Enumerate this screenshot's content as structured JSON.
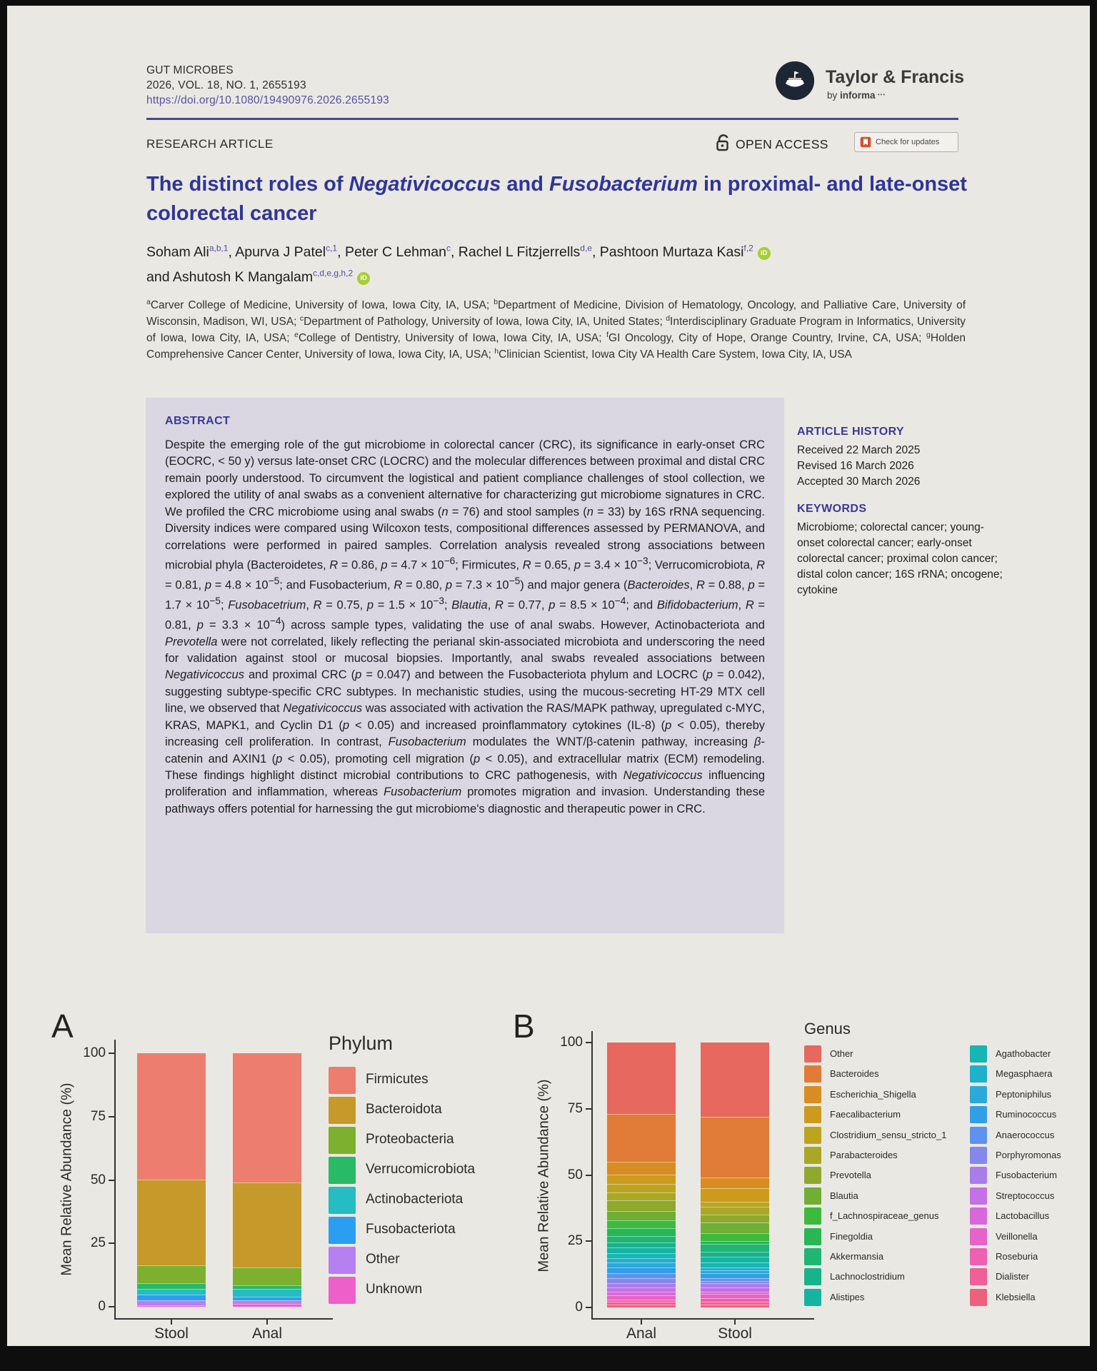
{
  "journal": {
    "name": "GUT MICROBES",
    "citation": "2026, VOL. 18, NO. 1, 2655193",
    "doi": "https://doi.org/10.1080/19490976.2026.2655193",
    "publisher": "Taylor & Francis",
    "publisher_tagline_html": "by <b>informa</b><span class=\"dots\"> •••</span>",
    "article_type": "RESEARCH ARTICLE",
    "open_access": "OPEN ACCESS",
    "check_updates": "Check for updates"
  },
  "article": {
    "title_html": "The distinct roles of <i>Negativicoccus</i> and <i>Fusobacterium</i> in proximal- and late-onset colorectal cancer",
    "authors_html": "Soham Ali<sup>a,b,1</sup>, Apurva J Patel<sup>c,1</sup>, Peter C Lehman<sup>c</sup>, Rachel L Fitzjerrells<sup>d,e</sup>, Pashtoon Murtaza Kasi<sup>f,2</sup><span class=\"orcid\" data-name=\"orcid-icon\" data-interactable=\"true\">iD</span><br>and Ashutosh K Mangalam<sup>c,d,e,g,h,2</sup><span class=\"orcid\" data-name=\"orcid-icon\" data-interactable=\"true\">iD</span>",
    "affiliations_html": "<sup>a</sup>Carver College of Medicine, University of Iowa, Iowa City, IA, USA; <sup>b</sup>Department of Medicine, Division of Hematology, Oncology, and Palliative Care, University of Wisconsin, Madison, WI, USA; <sup>c</sup>Department of Pathology, University of Iowa, Iowa City, IA, United States; <sup>d</sup>Interdisciplinary Graduate Program in Informatics, University of Iowa, Iowa City, IA, USA; <sup>e</sup>College of Dentistry, University of Iowa, Iowa City, IA, USA; <sup>f</sup>GI Oncology, City of Hope, Orange Country, Irvine, CA, USA; <sup>g</sup>Holden Comprehensive Cancer Center, University of Iowa, Iowa City, IA, USA; <sup>h</sup>Clinician Scientist, Iowa City VA Health Care System, Iowa City, IA, USA"
  },
  "abstract": {
    "heading": "ABSTRACT",
    "body_html": "Despite the emerging role of the gut microbiome in colorectal cancer (CRC), its significance in early-onset CRC (EOCRC, &lt; 50 y) versus late-onset CRC (LOCRC) and the molecular differences between proximal and distal CRC remain poorly understood. To circumvent the logistical and patient compliance challenges of stool collection, we explored the utility of anal swabs as a convenient alternative for characterizing gut microbiome signatures in CRC. We profiled the CRC microbiome using anal swabs (<i>n</i> = 76) and stool samples (<i>n</i> = 33) by 16S rRNA sequencing. Diversity indices were compared using Wilcoxon tests, compositional differences assessed by PERMANOVA, and correlations were performed in paired samples. Correlation analysis revealed strong associations between microbial phyla (Bacteroidetes, <i>R</i> = 0.86, <i>p</i> = 4.7 × 10<sup>−6</sup>; Firmicutes, <i>R</i> = 0.65, <i>p</i> = 3.4 × 10<sup>−3</sup>; Verrucomicrobiota, <i>R</i> = 0.81, <i>p</i> = 4.8 × 10<sup>−5</sup>; and Fusobacterium, <i>R</i> = 0.80, <i>p</i> = 7.3 × 10<sup>−5</sup>) and major genera (<i>Bacteroides</i>, <i>R</i> = 0.88, <i>p</i> = 1.7 × 10<sup>−5</sup>; <i>Fusobacetrium</i>, <i>R</i> = 0.75, <i>p</i> = 1.5 × 10<sup>−3</sup>; <i>Blautia</i>, <i>R</i> = 0.77, <i>p</i> = 8.5 × 10<sup>−4</sup>; and <i>Bifidobacterium</i>, <i>R</i> = 0.81, <i>p</i> = 3.3 × 10<sup>−4</sup>) across sample types, validating the use of anal swabs. However, Actinobacteriota and <i>Prevotella</i> were not correlated, likely reflecting the perianal skin-associated microbiota and underscoring the need for validation against stool or mucosal biopsies. Importantly, anal swabs revealed associations between <i>Negativicoccus</i> and proximal CRC (<i>p</i> = 0.047) and between the Fusobacteriota phylum and LOCRC (<i>p</i> = 0.042), suggesting subtype-specific CRC subtypes. In mechanistic studies, using the mucous-secreting HT-29 MTX cell line, we observed that <i>Negativicoccus</i> was associated with activation the RAS/MAPK pathway, upregulated c-MYC, KRAS, MAPK1, and Cyclin D1 (<i>p</i> &lt; 0.05) and increased proinflammatory cytokines (IL-8) (<i>p</i> &lt; 0.05), thereby increasing cell proliferation. In contrast, <i>Fusobacterium</i> modulates the WNT/β-catenin pathway, increasing <i>β</i>-catenin and AXIN1 (<i>p</i> &lt; 0.05), promoting cell migration (<i>p</i> &lt; 0.05), and extracellular matrix (ECM) remodeling. These findings highlight distinct microbial contributions to CRC pathogenesis, with <i>Negativicoccus</i> influencing proliferation and inflammation, whereas <i>Fusobacterium</i> promotes migration and invasion. Understanding these pathways offers potential for harnessing the gut microbiome's diagnostic and therapeutic power in CRC."
  },
  "history": {
    "heading": "ARTICLE HISTORY",
    "received": "Received 22 March 2025",
    "revised": "Revised 16 March 2026",
    "accepted": "Accepted 30 March 2026"
  },
  "keywords": {
    "heading": "KEYWORDS",
    "text": "Microbiome; colorectal cancer; young-onset colorectal cancer; early-onset colorectal cancer; proximal colon cancer; distal colon cancer; 16S rRNA; oncogene; cytokine"
  },
  "chart_data": [
    {
      "type": "bar",
      "panel": "A",
      "stacked": true,
      "legend_title": "Phylum",
      "ylabel": "Mean Relative Abundance (%)",
      "ylim": [
        0,
        100
      ],
      "yticks": [
        0,
        25,
        50,
        75,
        100
      ],
      "categories": [
        "Stool",
        "Anal"
      ],
      "series": [
        {
          "name": "Firmicutes",
          "color": "#ed7d6e",
          "values": [
            49.8,
            51.0
          ]
        },
        {
          "name": "Bacteroidota",
          "color": "#c6992b",
          "values": [
            34.0,
            33.5
          ]
        },
        {
          "name": "Proteobacteria",
          "color": "#7db02e",
          "values": [
            7.0,
            7.0
          ]
        },
        {
          "name": "Verrucomicrobiota",
          "color": "#28ba66",
          "values": [
            2.2,
            1.5
          ]
        },
        {
          "name": "Actinobacteriota",
          "color": "#25bcc2",
          "values": [
            2.3,
            3.0
          ]
        },
        {
          "name": "Fusobacteriota",
          "color": "#2c9ef2",
          "values": [
            2.2,
            1.5
          ]
        },
        {
          "name": "Other",
          "color": "#b67ff2",
          "values": [
            2.0,
            1.5
          ]
        },
        {
          "name": "Unknown",
          "color": "#ed5fc9",
          "values": [
            0.5,
            1.0
          ]
        }
      ]
    },
    {
      "type": "bar",
      "panel": "B",
      "stacked": true,
      "legend_title": "Genus",
      "ylabel": "Mean Relative Abundance (%)",
      "ylim": [
        0,
        100
      ],
      "yticks": [
        0,
        25,
        50,
        75,
        100
      ],
      "categories": [
        "Anal",
        "Stool"
      ],
      "series": [
        {
          "name": "Other",
          "color": "#e7685e",
          "values": [
            27.0,
            28.0
          ]
        },
        {
          "name": "Bacteroides",
          "color": "#e07b38",
          "values": [
            18.0,
            23.0
          ]
        },
        {
          "name": "Escherichia_Shigella",
          "color": "#d98c21",
          "values": [
            5.0,
            4.0
          ]
        },
        {
          "name": "Faecalibacterium",
          "color": "#cc9a1d",
          "values": [
            3.5,
            5.0
          ]
        },
        {
          "name": "Clostridium_sensu_stricto_1",
          "color": "#bda41f",
          "values": [
            3.0,
            2.0
          ]
        },
        {
          "name": "Parabacteroides",
          "color": "#a9a826",
          "values": [
            3.0,
            3.0
          ]
        },
        {
          "name": "Prevotella",
          "color": "#8fa92d",
          "values": [
            4.0,
            3.0
          ]
        },
        {
          "name": "Blautia",
          "color": "#70ae35",
          "values": [
            3.5,
            4.0
          ]
        },
        {
          "name": "f_Lachnospiraceae_genus",
          "color": "#3dba3d",
          "values": [
            3.0,
            3.0
          ]
        },
        {
          "name": "Finegoldia",
          "color": "#28b754",
          "values": [
            3.0,
            1.0
          ]
        },
        {
          "name": "Akkermansia",
          "color": "#1fb573",
          "values": [
            2.5,
            3.0
          ]
        },
        {
          "name": "Lachnoclostridium",
          "color": "#18b28b",
          "values": [
            2.0,
            2.0
          ]
        },
        {
          "name": "Alistipes",
          "color": "#14b4a1",
          "values": [
            2.0,
            2.0
          ]
        },
        {
          "name": "Agathobacter",
          "color": "#17b5b4",
          "values": [
            2.0,
            2.0
          ]
        },
        {
          "name": "Megasphaera",
          "color": "#20b0c9",
          "values": [
            1.5,
            1.0
          ]
        },
        {
          "name": "Peptoniphilus",
          "color": "#2ba9da",
          "values": [
            2.0,
            1.0
          ]
        },
        {
          "name": "Ruminococcus",
          "color": "#309fe8",
          "values": [
            2.0,
            2.0
          ]
        },
        {
          "name": "Anaerococcus",
          "color": "#5d92ee",
          "values": [
            2.0,
            1.0
          ]
        },
        {
          "name": "Porphyromonas",
          "color": "#8487ec",
          "values": [
            2.0,
            1.0
          ]
        },
        {
          "name": "Fusobacterium",
          "color": "#a87dea",
          "values": [
            1.5,
            1.5
          ]
        },
        {
          "name": "Streptococcus",
          "color": "#c271e6",
          "values": [
            1.5,
            1.5
          ]
        },
        {
          "name": "Lactobacillus",
          "color": "#d868da",
          "values": [
            1.5,
            1.0
          ]
        },
        {
          "name": "Veillonella",
          "color": "#e663c8",
          "values": [
            1.5,
            1.5
          ]
        },
        {
          "name": "Roseburia",
          "color": "#ed61b0",
          "values": [
            1.0,
            1.5
          ]
        },
        {
          "name": "Dialister",
          "color": "#f05f96",
          "values": [
            1.0,
            1.0
          ]
        },
        {
          "name": "Klebsiella",
          "color": "#ee617a",
          "values": [
            1.0,
            1.0
          ]
        }
      ]
    }
  ]
}
